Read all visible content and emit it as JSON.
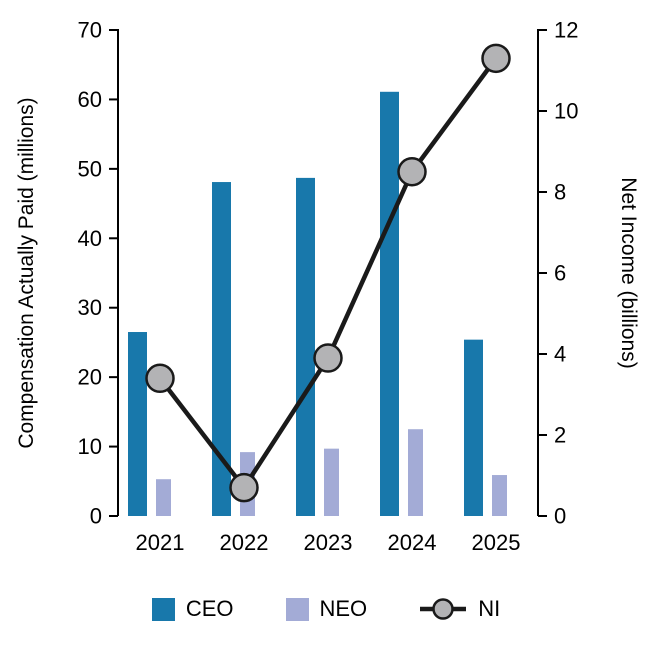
{
  "chart_data": {
    "type": "bar",
    "subtype": "grouped bars with overlaid line (dual y-axis)",
    "categories": [
      "2021",
      "2022",
      "2023",
      "2024",
      "2025"
    ],
    "series": [
      {
        "name": "CEO",
        "type": "bar",
        "axis": "left",
        "color": "#1878ab",
        "values": [
          26.5,
          48.1,
          48.7,
          61.1,
          25.4
        ]
      },
      {
        "name": "NEO",
        "type": "bar",
        "axis": "left",
        "color": "#a3abd6",
        "values": [
          5.3,
          9.2,
          9.7,
          12.5,
          5.9
        ]
      },
      {
        "name": "NI",
        "type": "line",
        "axis": "right",
        "color": "#1a1a1a",
        "marker_fill": "#b3b3b5",
        "values": [
          3.4,
          0.7,
          3.9,
          8.5,
          11.3
        ]
      }
    ],
    "title": "",
    "xlabel": "",
    "ylabel_left": "Compensation Actually Paid (millions)",
    "ylabel_right": "Net Income (billions)",
    "ylim_left": [
      0,
      70
    ],
    "yticks_left": [
      0,
      10,
      20,
      30,
      40,
      50,
      60,
      70
    ],
    "ylim_right": [
      0,
      12
    ],
    "yticks_right": [
      0,
      2,
      4,
      6,
      8,
      10,
      12
    ],
    "grid": false,
    "legend_position": "bottom",
    "legend": [
      "CEO",
      "NEO",
      "NI"
    ]
  }
}
